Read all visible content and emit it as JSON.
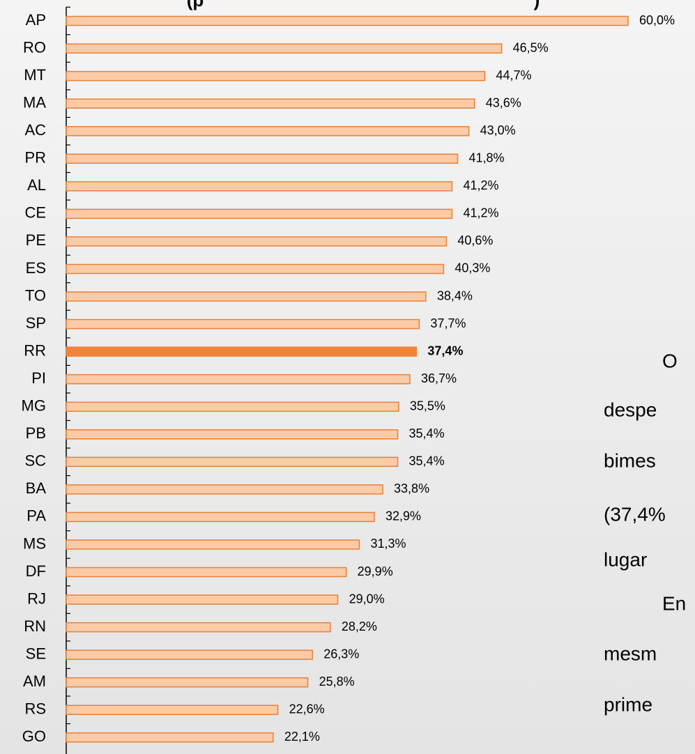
{
  "chart_data": {
    "type": "bar",
    "orientation": "horizontal",
    "title_fragments": [
      "(p",
      ")"
    ],
    "categories": [
      "AP",
      "RO",
      "MT",
      "MA",
      "AC",
      "PR",
      "AL",
      "CE",
      "PE",
      "ES",
      "TO",
      "SP",
      "RR",
      "PI",
      "MG",
      "PB",
      "SC",
      "BA",
      "PA",
      "MS",
      "DF",
      "RJ",
      "RN",
      "SE",
      "AM",
      "RS",
      "GO"
    ],
    "values": [
      60.0,
      46.5,
      44.7,
      43.6,
      43.0,
      41.8,
      41.2,
      41.2,
      40.6,
      40.3,
      38.4,
      37.7,
      37.4,
      36.7,
      35.5,
      35.4,
      35.4,
      33.8,
      32.9,
      31.3,
      29.9,
      29.0,
      28.2,
      26.3,
      25.8,
      22.6,
      22.1
    ],
    "value_labels": [
      "60,0%",
      "46,5%",
      "44,7%",
      "43,6%",
      "43,0%",
      "41,8%",
      "41,2%",
      "41,2%",
      "40,6%",
      "40,3%",
      "38,4%",
      "37,7%",
      "37,4%",
      "36,7%",
      "35,5%",
      "35,4%",
      "35,4%",
      "33,8%",
      "32,9%",
      "31,3%",
      "29,9%",
      "29,0%",
      "28,2%",
      "26,3%",
      "25,8%",
      "22,6%",
      "22,1%"
    ],
    "color": "#fbcaa6",
    "edge_color": "#e8803a",
    "highlight": {
      "category": "RR",
      "color": "#f0843a"
    },
    "xlim": [
      0,
      60
    ],
    "side_text_fragments": [
      "O",
      "despe",
      "bimes",
      "(37,4%",
      "lugar",
      "En",
      "mesm",
      "prime"
    ]
  }
}
